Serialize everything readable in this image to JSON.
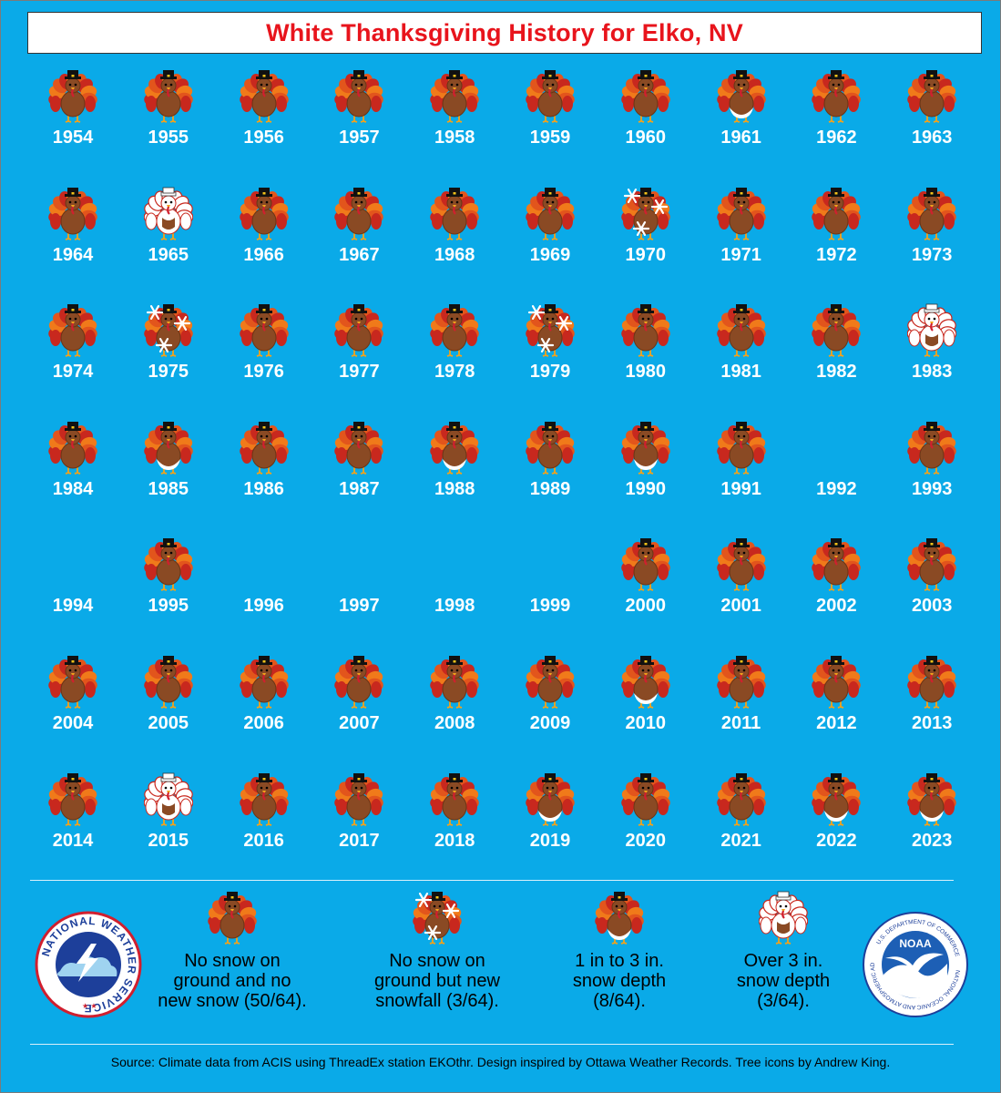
{
  "title": "White Thanksgiving History for Elko, NV",
  "colors": {
    "background": "#0aaae8",
    "title": "#e8141c"
  },
  "categories": {
    "none": "No snow on\nground and no\nnew snow (50/64).",
    "snowfall": "No snow on\nground but new\nsnowfall (3/64).",
    "light": "1 in to 3 in.\nsnow depth\n(8/64).",
    "heavy": "Over 3 in.\nsnow depth\n(3/64)."
  },
  "years": [
    {
      "year": "1954",
      "cat": "none"
    },
    {
      "year": "1955",
      "cat": "none"
    },
    {
      "year": "1956",
      "cat": "none"
    },
    {
      "year": "1957",
      "cat": "none"
    },
    {
      "year": "1958",
      "cat": "none"
    },
    {
      "year": "1959",
      "cat": "none"
    },
    {
      "year": "1960",
      "cat": "none"
    },
    {
      "year": "1961",
      "cat": "light"
    },
    {
      "year": "1962",
      "cat": "none"
    },
    {
      "year": "1963",
      "cat": "none"
    },
    {
      "year": "1964",
      "cat": "none"
    },
    {
      "year": "1965",
      "cat": "heavy"
    },
    {
      "year": "1966",
      "cat": "none"
    },
    {
      "year": "1967",
      "cat": "none"
    },
    {
      "year": "1968",
      "cat": "none"
    },
    {
      "year": "1969",
      "cat": "none"
    },
    {
      "year": "1970",
      "cat": "snowfall"
    },
    {
      "year": "1971",
      "cat": "none"
    },
    {
      "year": "1972",
      "cat": "none"
    },
    {
      "year": "1973",
      "cat": "none"
    },
    {
      "year": "1974",
      "cat": "none"
    },
    {
      "year": "1975",
      "cat": "snowfall"
    },
    {
      "year": "1976",
      "cat": "none"
    },
    {
      "year": "1977",
      "cat": "none"
    },
    {
      "year": "1978",
      "cat": "none"
    },
    {
      "year": "1979",
      "cat": "snowfall"
    },
    {
      "year": "1980",
      "cat": "none"
    },
    {
      "year": "1981",
      "cat": "none"
    },
    {
      "year": "1982",
      "cat": "none"
    },
    {
      "year": "1983",
      "cat": "heavy"
    },
    {
      "year": "1984",
      "cat": "none"
    },
    {
      "year": "1985",
      "cat": "light"
    },
    {
      "year": "1986",
      "cat": "none"
    },
    {
      "year": "1987",
      "cat": "none"
    },
    {
      "year": "1988",
      "cat": "light"
    },
    {
      "year": "1989",
      "cat": "none"
    },
    {
      "year": "1990",
      "cat": "light"
    },
    {
      "year": "1991",
      "cat": "none"
    },
    {
      "year": "1992",
      "cat": "missing"
    },
    {
      "year": "1993",
      "cat": "none"
    },
    {
      "year": "1994",
      "cat": "missing"
    },
    {
      "year": "1995",
      "cat": "none"
    },
    {
      "year": "1996",
      "cat": "missing"
    },
    {
      "year": "1997",
      "cat": "missing"
    },
    {
      "year": "1998",
      "cat": "missing"
    },
    {
      "year": "1999",
      "cat": "missing"
    },
    {
      "year": "2000",
      "cat": "none"
    },
    {
      "year": "2001",
      "cat": "none"
    },
    {
      "year": "2002",
      "cat": "none"
    },
    {
      "year": "2003",
      "cat": "none"
    },
    {
      "year": "2004",
      "cat": "none"
    },
    {
      "year": "2005",
      "cat": "none"
    },
    {
      "year": "2006",
      "cat": "none"
    },
    {
      "year": "2007",
      "cat": "none"
    },
    {
      "year": "2008",
      "cat": "none"
    },
    {
      "year": "2009",
      "cat": "none"
    },
    {
      "year": "2010",
      "cat": "light"
    },
    {
      "year": "2011",
      "cat": "none"
    },
    {
      "year": "2012",
      "cat": "none"
    },
    {
      "year": "2013",
      "cat": "none"
    },
    {
      "year": "2014",
      "cat": "none"
    },
    {
      "year": "2015",
      "cat": "heavy"
    },
    {
      "year": "2016",
      "cat": "none"
    },
    {
      "year": "2017",
      "cat": "none"
    },
    {
      "year": "2018",
      "cat": "none"
    },
    {
      "year": "2019",
      "cat": "light"
    },
    {
      "year": "2020",
      "cat": "none"
    },
    {
      "year": "2021",
      "cat": "none"
    },
    {
      "year": "2022",
      "cat": "light"
    },
    {
      "year": "2023",
      "cat": "light"
    }
  ],
  "logos": {
    "nws": "NATIONAL WEATHER SERVICE",
    "noaa": "NOAA",
    "noaa_ring": "NATIONAL OCEANIC AND ATMOSPHERIC ADMINISTRATION",
    "noaa_ring_bottom": "U.S. DEPARTMENT OF COMMERCE"
  },
  "source": "Source: Climate data from ACIS using ThreadEx station EKOthr. Design inspired by Ottawa Weather Records. Tree icons by Andrew King."
}
